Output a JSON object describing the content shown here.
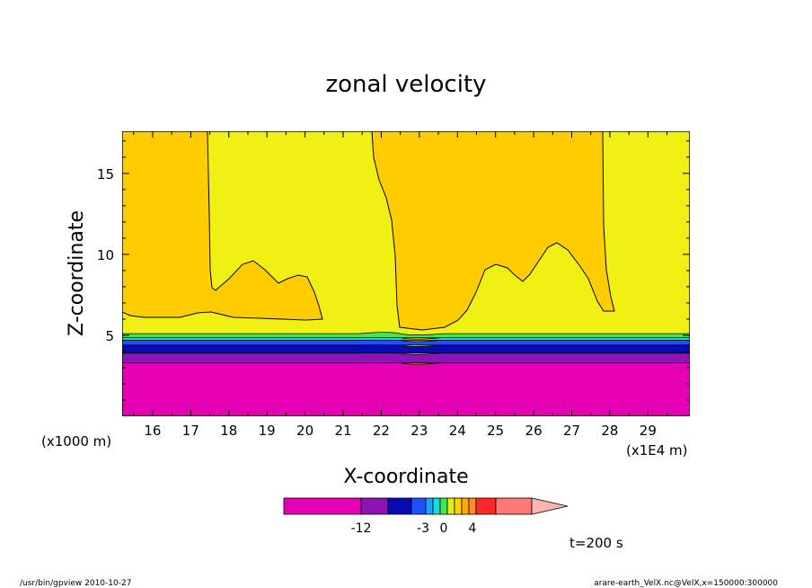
{
  "chart_data": {
    "type": "heatmap",
    "title": "zonal velocity",
    "xlabel": "X-coordinate",
    "ylabel": "Z-coordinate",
    "x_unit_left": "(x1000 m)",
    "x_unit_right": "(x1E4 m)",
    "xlim": [
      15.2,
      30.1
    ],
    "ylim": [
      0,
      17.6
    ],
    "x_ticks": [
      "16",
      "17",
      "18",
      "19",
      "20",
      "21",
      "22",
      "23",
      "24",
      "25",
      "26",
      "27",
      "28",
      "29"
    ],
    "y_ticks": [
      "5",
      "10",
      "15"
    ],
    "time_label": "t=200 s",
    "colorbar": {
      "labels": [
        "-12",
        "-3",
        "0",
        "4"
      ],
      "colors": [
        "#e600b4",
        "#8c14b4",
        "#0a0ab4",
        "#1e50ff",
        "#1ea0ff",
        "#14dcdc",
        "#46e650",
        "#dcf014",
        "#ffd200",
        "#ffaa00",
        "#ff8c28",
        "#ff2828",
        "#ff7878",
        "#ffb4b4"
      ]
    },
    "regions": {
      "magenta_colors": "#e600b4",
      "yellow": "#f0f014",
      "orange": "#ffcc00"
    },
    "bands": [
      {
        "from": 0,
        "to": 3.3,
        "color": "#e600b4"
      },
      {
        "from": 3.3,
        "to": 3.9,
        "color": "#8c14b4"
      },
      {
        "from": 3.9,
        "to": 4.4,
        "color": "#0a0ab4"
      },
      {
        "from": 4.4,
        "to": 4.7,
        "color": "#1e50ff"
      },
      {
        "from": 4.7,
        "to": 4.85,
        "color": "#14dcdc"
      },
      {
        "from": 4.85,
        "to": 5.1,
        "color": "#46e650"
      }
    ]
  },
  "footer": {
    "left": "/usr/bin/gpview  2010-10-27",
    "right": "arare-earth_VelX.nc@VelX,x=150000:300000"
  }
}
